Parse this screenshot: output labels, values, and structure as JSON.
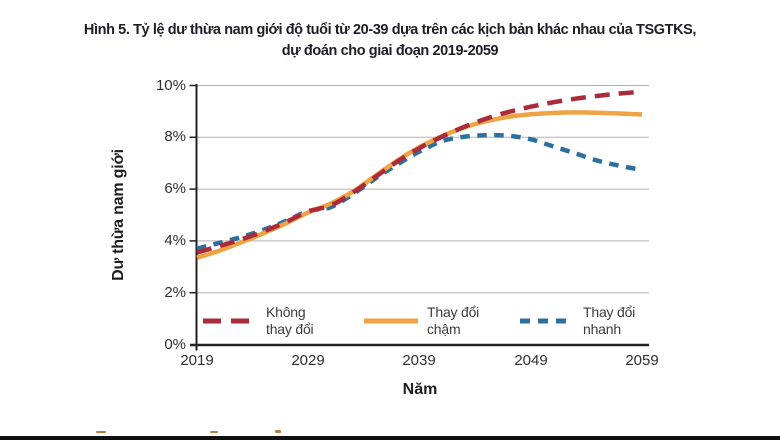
{
  "title": {
    "line1": "Hình 5. Tỷ lệ dư thừa nam giới độ tuổi từ 20-39 dựa trên các kịch bản khác nhau của TSGTKS,",
    "line2": "dự đoán cho giai đoạn 2019-2059"
  },
  "chart_data": {
    "type": "line",
    "title": "Hình 5. Tỷ lệ dư thừa nam giới độ tuổi từ 20-39 dựa trên các kịch bản khác nhau của TSGTKS, dự đoán cho giai đoạn 2019-2059",
    "xlabel": "Năm",
    "ylabel": "Dư thừa nam giới",
    "xlim": [
      2019,
      2059
    ],
    "ylim": [
      0,
      10
    ],
    "y_unit": "%",
    "grid": "horizontal-gridlines",
    "legend_position": "inside-bottom",
    "x_ticks": [
      "2019",
      "2029",
      "2039",
      "2049",
      "2059"
    ],
    "y_ticks": [
      "0%",
      "2%",
      "4%",
      "6%",
      "8%",
      "10%"
    ],
    "x": [
      2019,
      2021,
      2023,
      2025,
      2027,
      2029,
      2031,
      2033,
      2035,
      2037,
      2039,
      2041,
      2043,
      2045,
      2047,
      2049,
      2051,
      2053,
      2055,
      2057,
      2059
    ],
    "series": [
      {
        "name": "Không thay đổi",
        "label_line1": "Không",
        "label_line2": "thay đổi",
        "color": "#ab2b3a",
        "style": "dashed-long",
        "values": [
          3.55,
          3.8,
          4.06,
          4.37,
          4.73,
          5.14,
          5.36,
          5.86,
          6.46,
          7.06,
          7.58,
          8.02,
          8.4,
          8.72,
          8.98,
          9.18,
          9.35,
          9.49,
          9.6,
          9.69,
          9.76
        ]
      },
      {
        "name": "Thay đổi chậm",
        "label_line1": "Thay đổi",
        "label_line2": "chậm",
        "color": "#efa344",
        "style": "solid",
        "values": [
          3.35,
          3.62,
          3.95,
          4.3,
          4.68,
          5.1,
          5.44,
          5.9,
          6.5,
          7.1,
          7.62,
          8.04,
          8.38,
          8.62,
          8.79,
          8.89,
          8.94,
          8.96,
          8.95,
          8.92,
          8.88
        ]
      },
      {
        "name": "Thay đổi nhanh",
        "label_line1": "Thay đổi",
        "label_line2": "nhanh",
        "color": "#2d6f9f",
        "style": "dashed-short",
        "values": [
          3.7,
          3.92,
          4.15,
          4.43,
          4.77,
          5.15,
          5.3,
          5.8,
          6.4,
          6.95,
          7.45,
          7.85,
          8.02,
          8.08,
          8.06,
          7.92,
          7.65,
          7.38,
          7.1,
          6.9,
          6.74
        ]
      }
    ]
  },
  "colors": {
    "background": "#ffffff",
    "gridline": "#b3b3b3",
    "axis": "#222222",
    "tick_label": "#2f2f2f",
    "legend_text": "#3c3c3c",
    "title_text": "#1d1d28",
    "bottom_bar": "#101010",
    "artifact": "#bd7d49"
  }
}
